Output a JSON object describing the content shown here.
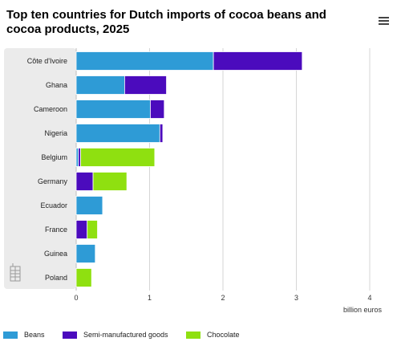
{
  "header": {
    "title": "Top ten countries for Dutch imports of cocoa beans and cocoa products, 2025",
    "menu_icon": "hamburger-menu-icon"
  },
  "chart_data": {
    "type": "bar",
    "orientation": "horizontal",
    "stacked": true,
    "title": "Top ten countries for Dutch imports of cocoa beans and cocoa products, 2025",
    "xlabel": "billion euros",
    "ylabel": "",
    "xlim": [
      0,
      4
    ],
    "xticks": [
      0,
      1,
      2,
      3,
      4
    ],
    "grid": true,
    "legend_position": "bottom",
    "categories": [
      "Côte d'Ivoire",
      "Ghana",
      "Cameroon",
      "Nigeria",
      "Belgium",
      "Germany",
      "Ecuador",
      "France",
      "Guinea",
      "Poland"
    ],
    "series": [
      {
        "name": "Beans",
        "color": "#2e9bd6",
        "values": [
          1.87,
          0.66,
          1.01,
          1.14,
          0.03,
          0.0,
          0.36,
          0.0,
          0.26,
          0.0
        ]
      },
      {
        "name": "Semi-manufactured goods",
        "color": "#4b0bbd",
        "values": [
          1.21,
          0.57,
          0.19,
          0.04,
          0.03,
          0.23,
          0.0,
          0.15,
          0.0,
          0.0
        ]
      },
      {
        "name": "Chocolate",
        "color": "#8fe010",
        "values": [
          0.0,
          0.0,
          0.0,
          0.0,
          1.01,
          0.46,
          0.0,
          0.14,
          0.0,
          0.21
        ]
      }
    ]
  },
  "colors": {
    "highlight_band": "#ebebeb",
    "grid": "#d6d6d6"
  },
  "icons": {
    "menu": "hamburger-menu-icon",
    "watermark": "building-logo-icon"
  }
}
